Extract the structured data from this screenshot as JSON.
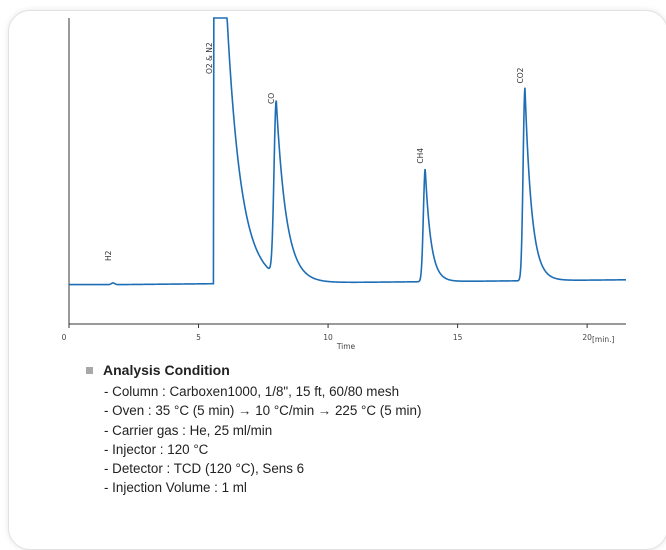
{
  "chart_data": {
    "type": "line",
    "xlabel": "Time",
    "x_unit_label": "[min.]",
    "xlim": [
      0,
      21.5
    ],
    "ylim": [
      -0.5,
      13
    ],
    "x_ticks": [
      0,
      5,
      10,
      15,
      20
    ],
    "line_color": "#1e6eb5",
    "grid": false,
    "peaks": [
      {
        "name": "H2",
        "rt": 1.7,
        "height": 0.08
      },
      {
        "name": "O2 & N2",
        "rt": 5.6,
        "height": 13
      },
      {
        "name": "CO",
        "rt": 8.0,
        "height": 8.5
      },
      {
        "name": "CH4",
        "rt": 13.75,
        "height": 5.5
      },
      {
        "name": "CO2",
        "rt": 17.6,
        "height": 9.4
      }
    ]
  },
  "conditions": {
    "title": "Analysis Condition",
    "items": [
      "- Column : Carboxen1000, 1/8\", 15 ft, 60/80 mesh",
      "- Oven : 35 °C (5 min) → 10 °C/min → 225 °C (5 min)",
      "- Carrier gas : He, 25 ml/min",
      "- Injector : 120 °C",
      "- Detector : TCD (120 °C), Sens 6",
      "- Injection Volume : 1 ml"
    ]
  }
}
